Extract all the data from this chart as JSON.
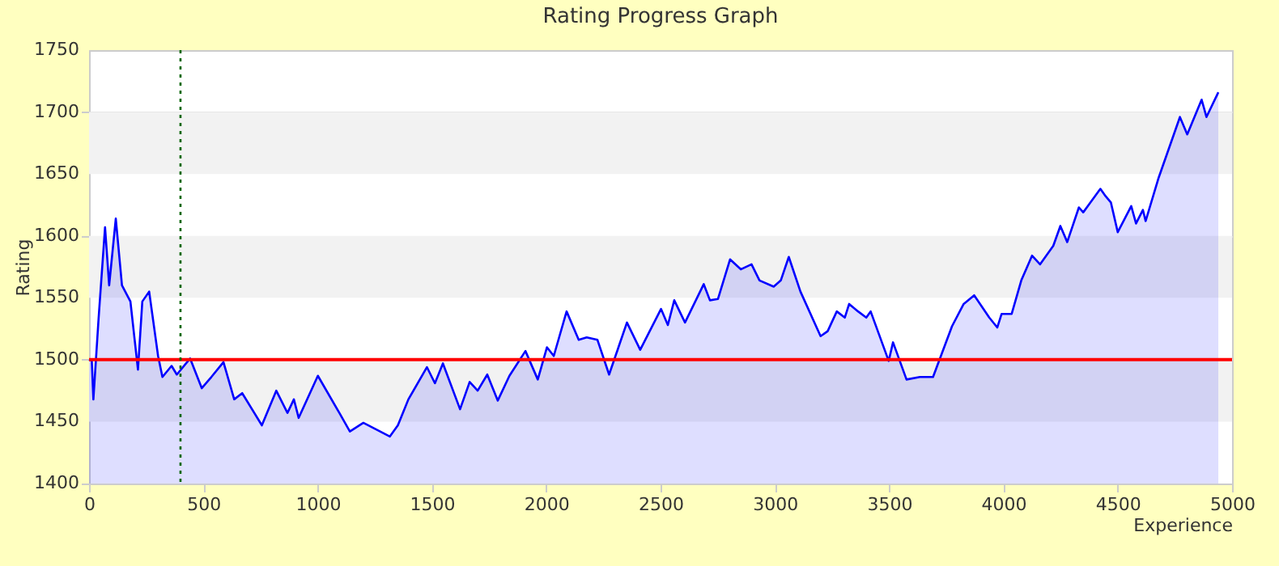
{
  "chart_data": {
    "type": "area",
    "title": "Rating Progress Graph",
    "xlabel": "Experience",
    "ylabel": "Rating",
    "xlim": [
      0,
      5000
    ],
    "xticks": [
      0,
      500,
      1000,
      1500,
      2000,
      2500,
      3000,
      3500,
      4000,
      4500,
      5000
    ],
    "ylim": [
      1400,
      1750
    ],
    "yticks": [
      1400,
      1450,
      1500,
      1550,
      1600,
      1650,
      1700,
      1750
    ],
    "grid": "y",
    "line_style": "solid",
    "marker": "none",
    "bands": [
      {
        "axis": "y",
        "from": 1450,
        "to": 1500,
        "color": "#f2f2f2"
      },
      {
        "axis": "y",
        "from": 1550,
        "to": 1600,
        "color": "#f2f2f2"
      },
      {
        "axis": "y",
        "from": 1650,
        "to": 1700,
        "color": "#f2f2f2"
      }
    ],
    "ref_lines": [
      {
        "axis": "y",
        "value": 1500,
        "color": "#ff0000",
        "line_style": "solid"
      },
      {
        "axis": "x",
        "value": 400,
        "color": "#006600",
        "line_style": "dotted"
      }
    ],
    "series": [
      {
        "color": "#0000ff",
        "x": [
          0,
          12,
          19,
          42,
          70,
          88,
          117,
          144,
          181,
          214,
          233,
          263,
          302,
          321,
          361,
          384,
          442,
          493,
          535,
          588,
          635,
          670,
          756,
          819,
          868,
          896,
          917,
          1001,
          1095,
          1141,
          1200,
          1316,
          1351,
          1397,
          1478,
          1513,
          1548,
          1623,
          1665,
          1700,
          1742,
          1788,
          1839,
          1909,
          1963,
          2003,
          2033,
          2089,
          2142,
          2177,
          2224,
          2275,
          2353,
          2411,
          2502,
          2532,
          2560,
          2607,
          2689,
          2716,
          2751,
          2804,
          2851,
          2898,
          2933,
          2995,
          3026,
          3061,
          3112,
          3200,
          3231,
          3271,
          3306,
          3325,
          3364,
          3400,
          3419,
          3498,
          3517,
          3576,
          3634,
          3692,
          3775,
          3826,
          3872,
          3938,
          3973,
          3992,
          4036,
          4078,
          4125,
          4160,
          4218,
          4249,
          4279,
          4330,
          4349,
          4424,
          4447,
          4470,
          4500,
          4559,
          4580,
          4610,
          4622,
          4679,
          4772,
          4804,
          4867,
          4888,
          4940
        ],
        "values": [
          1500,
          1499,
          1468,
          1534,
          1607,
          1560,
          1614,
          1560,
          1547,
          1492,
          1547,
          1555,
          1503,
          1486,
          1495,
          1488,
          1501,
          1477,
          1486,
          1498,
          1468,
          1473,
          1447,
          1475,
          1457,
          1468,
          1453,
          1487,
          1457,
          1442,
          1449,
          1438,
          1447,
          1468,
          1494,
          1481,
          1497,
          1460,
          1482,
          1475,
          1488,
          1467,
          1487,
          1507,
          1484,
          1510,
          1503,
          1539,
          1516,
          1518,
          1516,
          1488,
          1530,
          1508,
          1541,
          1528,
          1548,
          1530,
          1561,
          1548,
          1549,
          1581,
          1573,
          1577,
          1564,
          1559,
          1564,
          1583,
          1555,
          1519,
          1523,
          1539,
          1534,
          1545,
          1539,
          1534,
          1539,
          1499,
          1514,
          1484,
          1486,
          1486,
          1527,
          1545,
          1552,
          1534,
          1526,
          1537,
          1537,
          1564,
          1584,
          1577,
          1592,
          1608,
          1595,
          1623,
          1619,
          1638,
          1632,
          1627,
          1603,
          1624,
          1610,
          1621,
          1612,
          1647,
          1696,
          1682,
          1710,
          1696,
          1716
        ]
      }
    ]
  }
}
